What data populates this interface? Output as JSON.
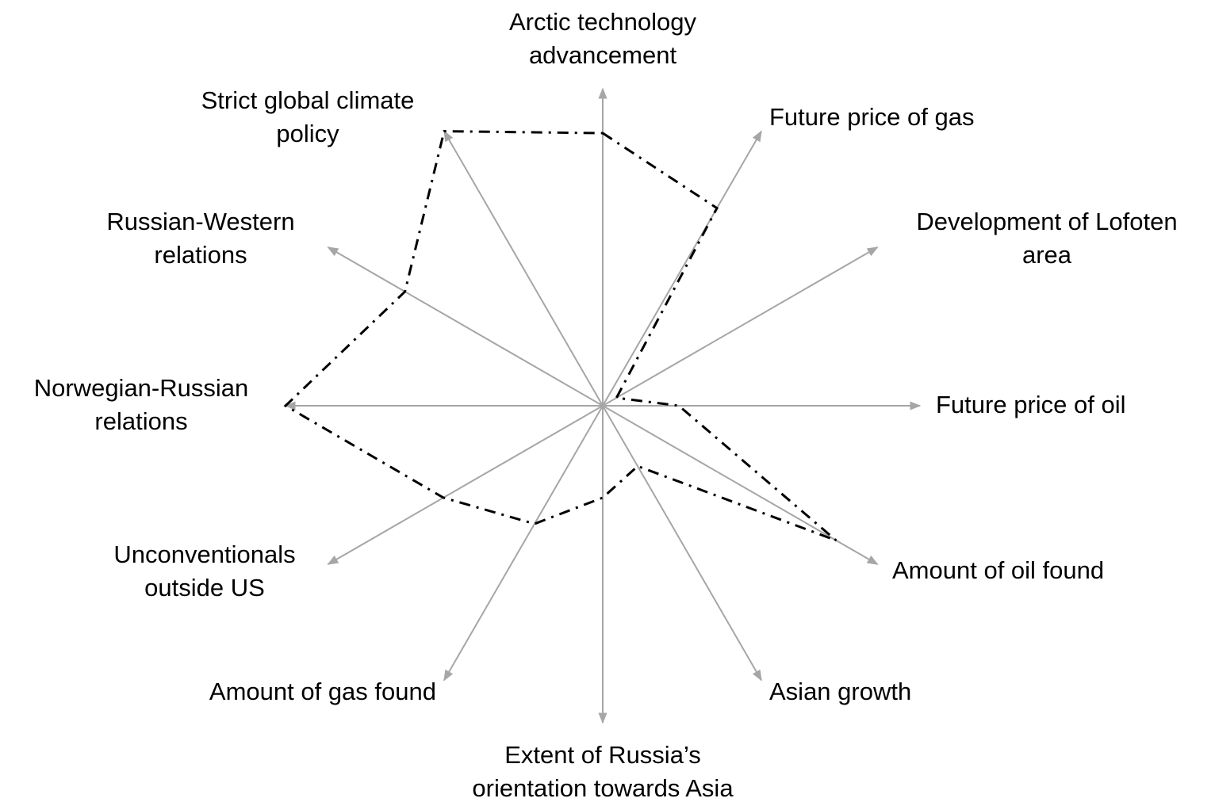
{
  "chart_data": {
    "type": "radar",
    "categories": [
      [
        "Arctic technology",
        "advancement"
      ],
      [
        "Future price of gas"
      ],
      [
        "Development of Lofoten",
        "area"
      ],
      [
        "Future price of oil"
      ],
      [
        "Amount of oil found"
      ],
      [
        "Asian growth"
      ],
      [
        "Extent of Russia’s",
        "orientation towards Asia"
      ],
      [
        "Amount of gas found"
      ],
      [
        "Unconventionals",
        "outside US"
      ],
      [
        "Norwegian-Russian",
        "relations"
      ],
      [
        "Russian-Western",
        "relations"
      ],
      [
        "Strict global climate",
        "policy"
      ]
    ],
    "values": [
      0.86,
      0.72,
      0.05,
      0.24,
      0.85,
      0.22,
      0.29,
      0.43,
      0.58,
      1.0,
      0.72,
      1.0
    ],
    "rlim": [
      0,
      1
    ],
    "axis_color": "#a6a6a6",
    "color": "#000000"
  }
}
